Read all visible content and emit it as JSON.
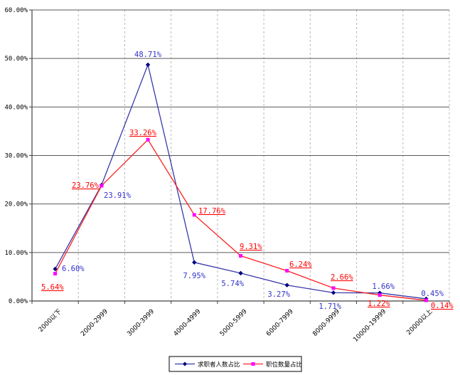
{
  "chart_data": {
    "type": "line",
    "title": "",
    "categories": [
      "2000以下",
      "2000-2999",
      "3000-3999",
      "4000-4999",
      "5000-5999",
      "6000-7999",
      "8000-9999",
      "10000-19999",
      "20000以上"
    ],
    "series": [
      {
        "name": "求职者人数占比",
        "values": [
          6.6,
          23.91,
          48.71,
          7.95,
          5.74,
          3.27,
          1.71,
          1.66,
          0.45
        ],
        "labels": [
          "6.60%",
          "23.91%",
          "48.71%",
          "7.95%",
          "5.74%",
          "3.27%",
          "1.71%",
          "1.66%",
          "0.45%"
        ],
        "line_color": "#3939A8",
        "marker": "diamond",
        "marker_color": "#000080",
        "label_color": "#3333CC",
        "label_underline": false
      },
      {
        "name": "职位数量占比",
        "values": [
          5.64,
          23.76,
          33.26,
          17.76,
          9.31,
          6.24,
          2.66,
          1.22,
          0.14
        ],
        "labels": [
          "5.64%",
          "23.76%",
          "33.26%",
          "17.76%",
          "9.31%",
          "6.24%",
          "2.66%",
          "1.22%",
          "0.14%"
        ],
        "line_color": "#FF2222",
        "marker": "square",
        "marker_color": "#FF00FF",
        "label_color": "#FF0000",
        "label_underline": true
      }
    ],
    "ylim": [
      0,
      60
    ],
    "ytick_step": 10,
    "ytick_labels": [
      "0.00%",
      "10.00%",
      "20.00%",
      "30.00%",
      "40.00%",
      "50.00%",
      "60.00%"
    ],
    "grid": {
      "horizontal": "solid",
      "vertical": "dashed"
    },
    "legend_position": "bottom",
    "colors": {
      "h_grid": "#5a5a5a",
      "v_grid": "#b8b8b8",
      "axis": "#404040",
      "tick_text": "#000000",
      "legend_border": "#000000",
      "background": "#ffffff"
    }
  }
}
